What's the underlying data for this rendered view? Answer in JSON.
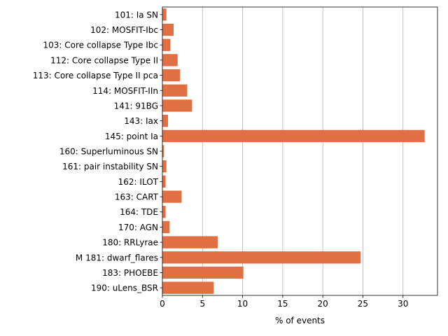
{
  "chart_data": {
    "type": "bar",
    "orientation": "horizontal",
    "title": "",
    "xlabel": "% of events",
    "ylabel": "",
    "xlim": [
      0,
      34.3
    ],
    "xticks": [
      0,
      5,
      10,
      15,
      20,
      25,
      30
    ],
    "grid": "vertical gridlines on x ticks",
    "bar_color": "#e07044",
    "categories": [
      "101: Ia SN",
      "102: MOSFIT-Ibc",
      "103: Core collapse Type Ibc",
      "112: Core collapse Type II",
      "113: Core collapse Type II pca",
      "114: MOSFIT-IIn",
      "141: 91BG",
      "143: Iax",
      "145: point Ia",
      "160: Superluminous SN",
      "161: pair instability SN",
      "162: ILOT",
      "163: CART",
      "164: TDE",
      "170: AGN",
      "180: RRLyrae",
      "M 181: dwarf_flares",
      "183: PHOEBE",
      "190: uLens_BSR"
    ],
    "values": [
      0.5,
      1.4,
      1.0,
      1.9,
      2.2,
      3.1,
      3.7,
      0.7,
      32.7,
      0.2,
      0.5,
      0.4,
      2.4,
      0.4,
      0.9,
      6.9,
      24.7,
      10.1,
      6.4
    ]
  }
}
